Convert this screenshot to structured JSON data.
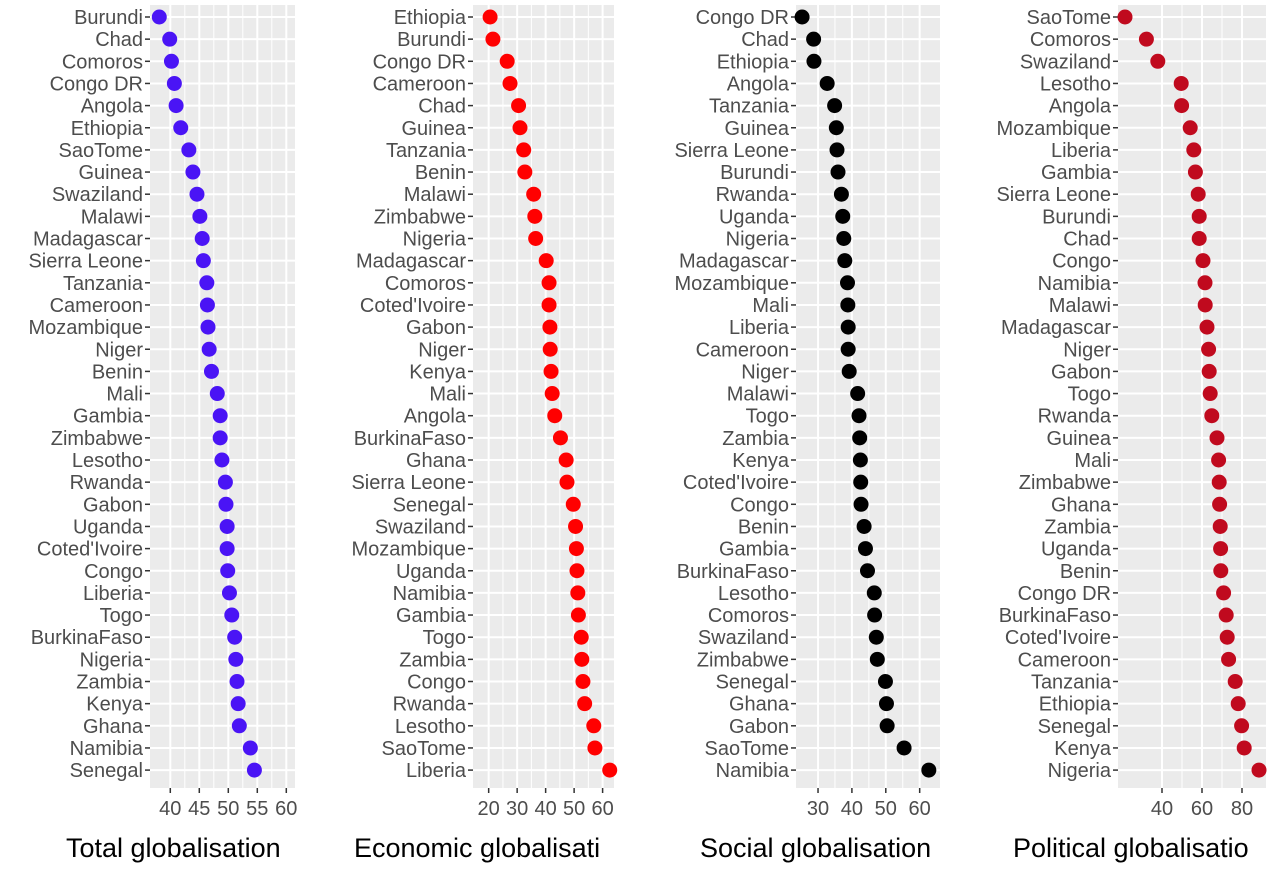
{
  "chart_data": [
    {
      "type": "scatter",
      "xlabel": "Total globalisation",
      "x_ticks": [
        40,
        45,
        50,
        55,
        60
      ],
      "xlim": [
        36.5,
        61.5
      ],
      "color": "#4a14f5",
      "categories": [
        "Burundi",
        "Chad",
        "Comoros",
        "Congo DR",
        "Angola",
        "Ethiopia",
        "SaoTome",
        "Guinea",
        "Swaziland",
        "Malawi",
        "Madagascar",
        "Sierra Leone",
        "Tanzania",
        "Cameroon",
        "Mozambique",
        "Niger",
        "Benin",
        "Mali",
        "Gambia",
        "Zimbabwe",
        "Lesotho",
        "Rwanda",
        "Gabon",
        "Uganda",
        "Coted'Ivoire",
        "Congo",
        "Liberia",
        "Togo",
        "BurkinaFaso",
        "Nigeria",
        "Zambia",
        "Kenya",
        "Ghana",
        "Namibia",
        "Senegal"
      ],
      "values": [
        38.1,
        39.9,
        40.2,
        40.7,
        41.0,
        41.8,
        43.2,
        43.9,
        44.6,
        45.1,
        45.5,
        45.7,
        46.3,
        46.4,
        46.5,
        46.7,
        47.1,
        48.1,
        48.6,
        48.6,
        48.9,
        49.5,
        49.6,
        49.8,
        49.8,
        49.9,
        50.2,
        50.6,
        51.1,
        51.3,
        51.5,
        51.7,
        51.9,
        53.8,
        54.5
      ]
    },
    {
      "type": "scatter",
      "xlabel": "Economic globalisati",
      "x_ticks": [
        20,
        30,
        40,
        50,
        60
      ],
      "xlim": [
        14.5,
        64
      ],
      "color": "#ff0000",
      "categories": [
        "Ethiopia",
        "Burundi",
        "Congo DR",
        "Cameroon",
        "Chad",
        "Guinea",
        "Tanzania",
        "Benin",
        "Malawi",
        "Zimbabwe",
        "Nigeria",
        "Madagascar",
        "Comoros",
        "Coted'Ivoire",
        "Gabon",
        "Niger",
        "Kenya",
        "Mali",
        "Angola",
        "BurkinaFaso",
        "Ghana",
        "Sierra Leone",
        "Senegal",
        "Swaziland",
        "Mozambique",
        "Uganda",
        "Namibia",
        "Gambia",
        "Togo",
        "Zambia",
        "Congo",
        "Rwanda",
        "Lesotho",
        "SaoTome",
        "Liberia"
      ],
      "values": [
        20.5,
        21.5,
        26.5,
        27.5,
        30.5,
        31,
        32.3,
        32.7,
        35.8,
        36.2,
        36.5,
        40.2,
        41.2,
        41.2,
        41.5,
        41.6,
        41.9,
        42.3,
        43.2,
        45.2,
        47.2,
        47.5,
        49.7,
        50.5,
        50.8,
        51,
        51.3,
        51.5,
        52.5,
        52.7,
        53.1,
        53.7,
        56.9,
        57.3,
        62.5
      ]
    },
    {
      "type": "scatter",
      "xlabel": "Social globalisation",
      "x_ticks": [
        30,
        40,
        50,
        60
      ],
      "xlim": [
        23.5,
        66
      ],
      "color": "#000000",
      "categories": [
        "Congo DR",
        "Chad",
        "Ethiopia",
        "Angola",
        "Tanzania",
        "Guinea",
        "Sierra Leone",
        "Burundi",
        "Rwanda",
        "Uganda",
        "Nigeria",
        "Madagascar",
        "Mozambique",
        "Mali",
        "Liberia",
        "Cameroon",
        "Niger",
        "Malawi",
        "Togo",
        "Zambia",
        "Kenya",
        "Coted'Ivoire",
        "Congo",
        "Benin",
        "Gambia",
        "BurkinaFaso",
        "Lesotho",
        "Comoros",
        "Swaziland",
        "Zimbabwe",
        "Senegal",
        "Ghana",
        "Gabon",
        "SaoTome",
        "Namibia"
      ],
      "values": [
        25.3,
        28.7,
        28.8,
        32.7,
        34.9,
        35.4,
        35.6,
        35.9,
        36.9,
        37.3,
        37.6,
        37.9,
        38.7,
        38.8,
        38.9,
        38.9,
        39.2,
        41.7,
        42.1,
        42.3,
        42.5,
        42.6,
        42.7,
        43.6,
        44,
        44.6,
        46.6,
        46.7,
        47.2,
        47.5,
        49.9,
        50.2,
        50.4,
        55.4,
        62.7
      ]
    },
    {
      "type": "scatter",
      "xlabel": "Political globalisatio",
      "x_ticks": [
        40,
        60,
        80
      ],
      "xlim": [
        18,
        92
      ],
      "color": "#c00a1e",
      "categories": [
        "SaoTome",
        "Comoros",
        "Swaziland",
        "Lesotho",
        "Angola",
        "Mozambique",
        "Liberia",
        "Gambia",
        "Sierra Leone",
        "Burundi",
        "Chad",
        "Congo",
        "Namibia",
        "Malawi",
        "Madagascar",
        "Niger",
        "Gabon",
        "Togo",
        "Rwanda",
        "Guinea",
        "Mali",
        "Zimbabwe",
        "Ghana",
        "Zambia",
        "Uganda",
        "Benin",
        "Congo DR",
        "BurkinaFaso",
        "Coted'Ivoire",
        "Cameroon",
        "Tanzania",
        "Ethiopia",
        "Senegal",
        "Kenya",
        "Nigeria"
      ],
      "values": [
        21.5,
        32.2,
        37.9,
        49.6,
        49.8,
        54.1,
        55.9,
        56.7,
        58.1,
        58.6,
        58.6,
        60.5,
        61.5,
        61.6,
        62.5,
        63.3,
        63.6,
        64.1,
        64.9,
        67.5,
        68.3,
        68.6,
        68.8,
        69.1,
        69.3,
        69.4,
        70.8,
        72.1,
        72.6,
        73.3,
        76.6,
        78.1,
        79.8,
        81.1,
        88.5
      ]
    }
  ]
}
